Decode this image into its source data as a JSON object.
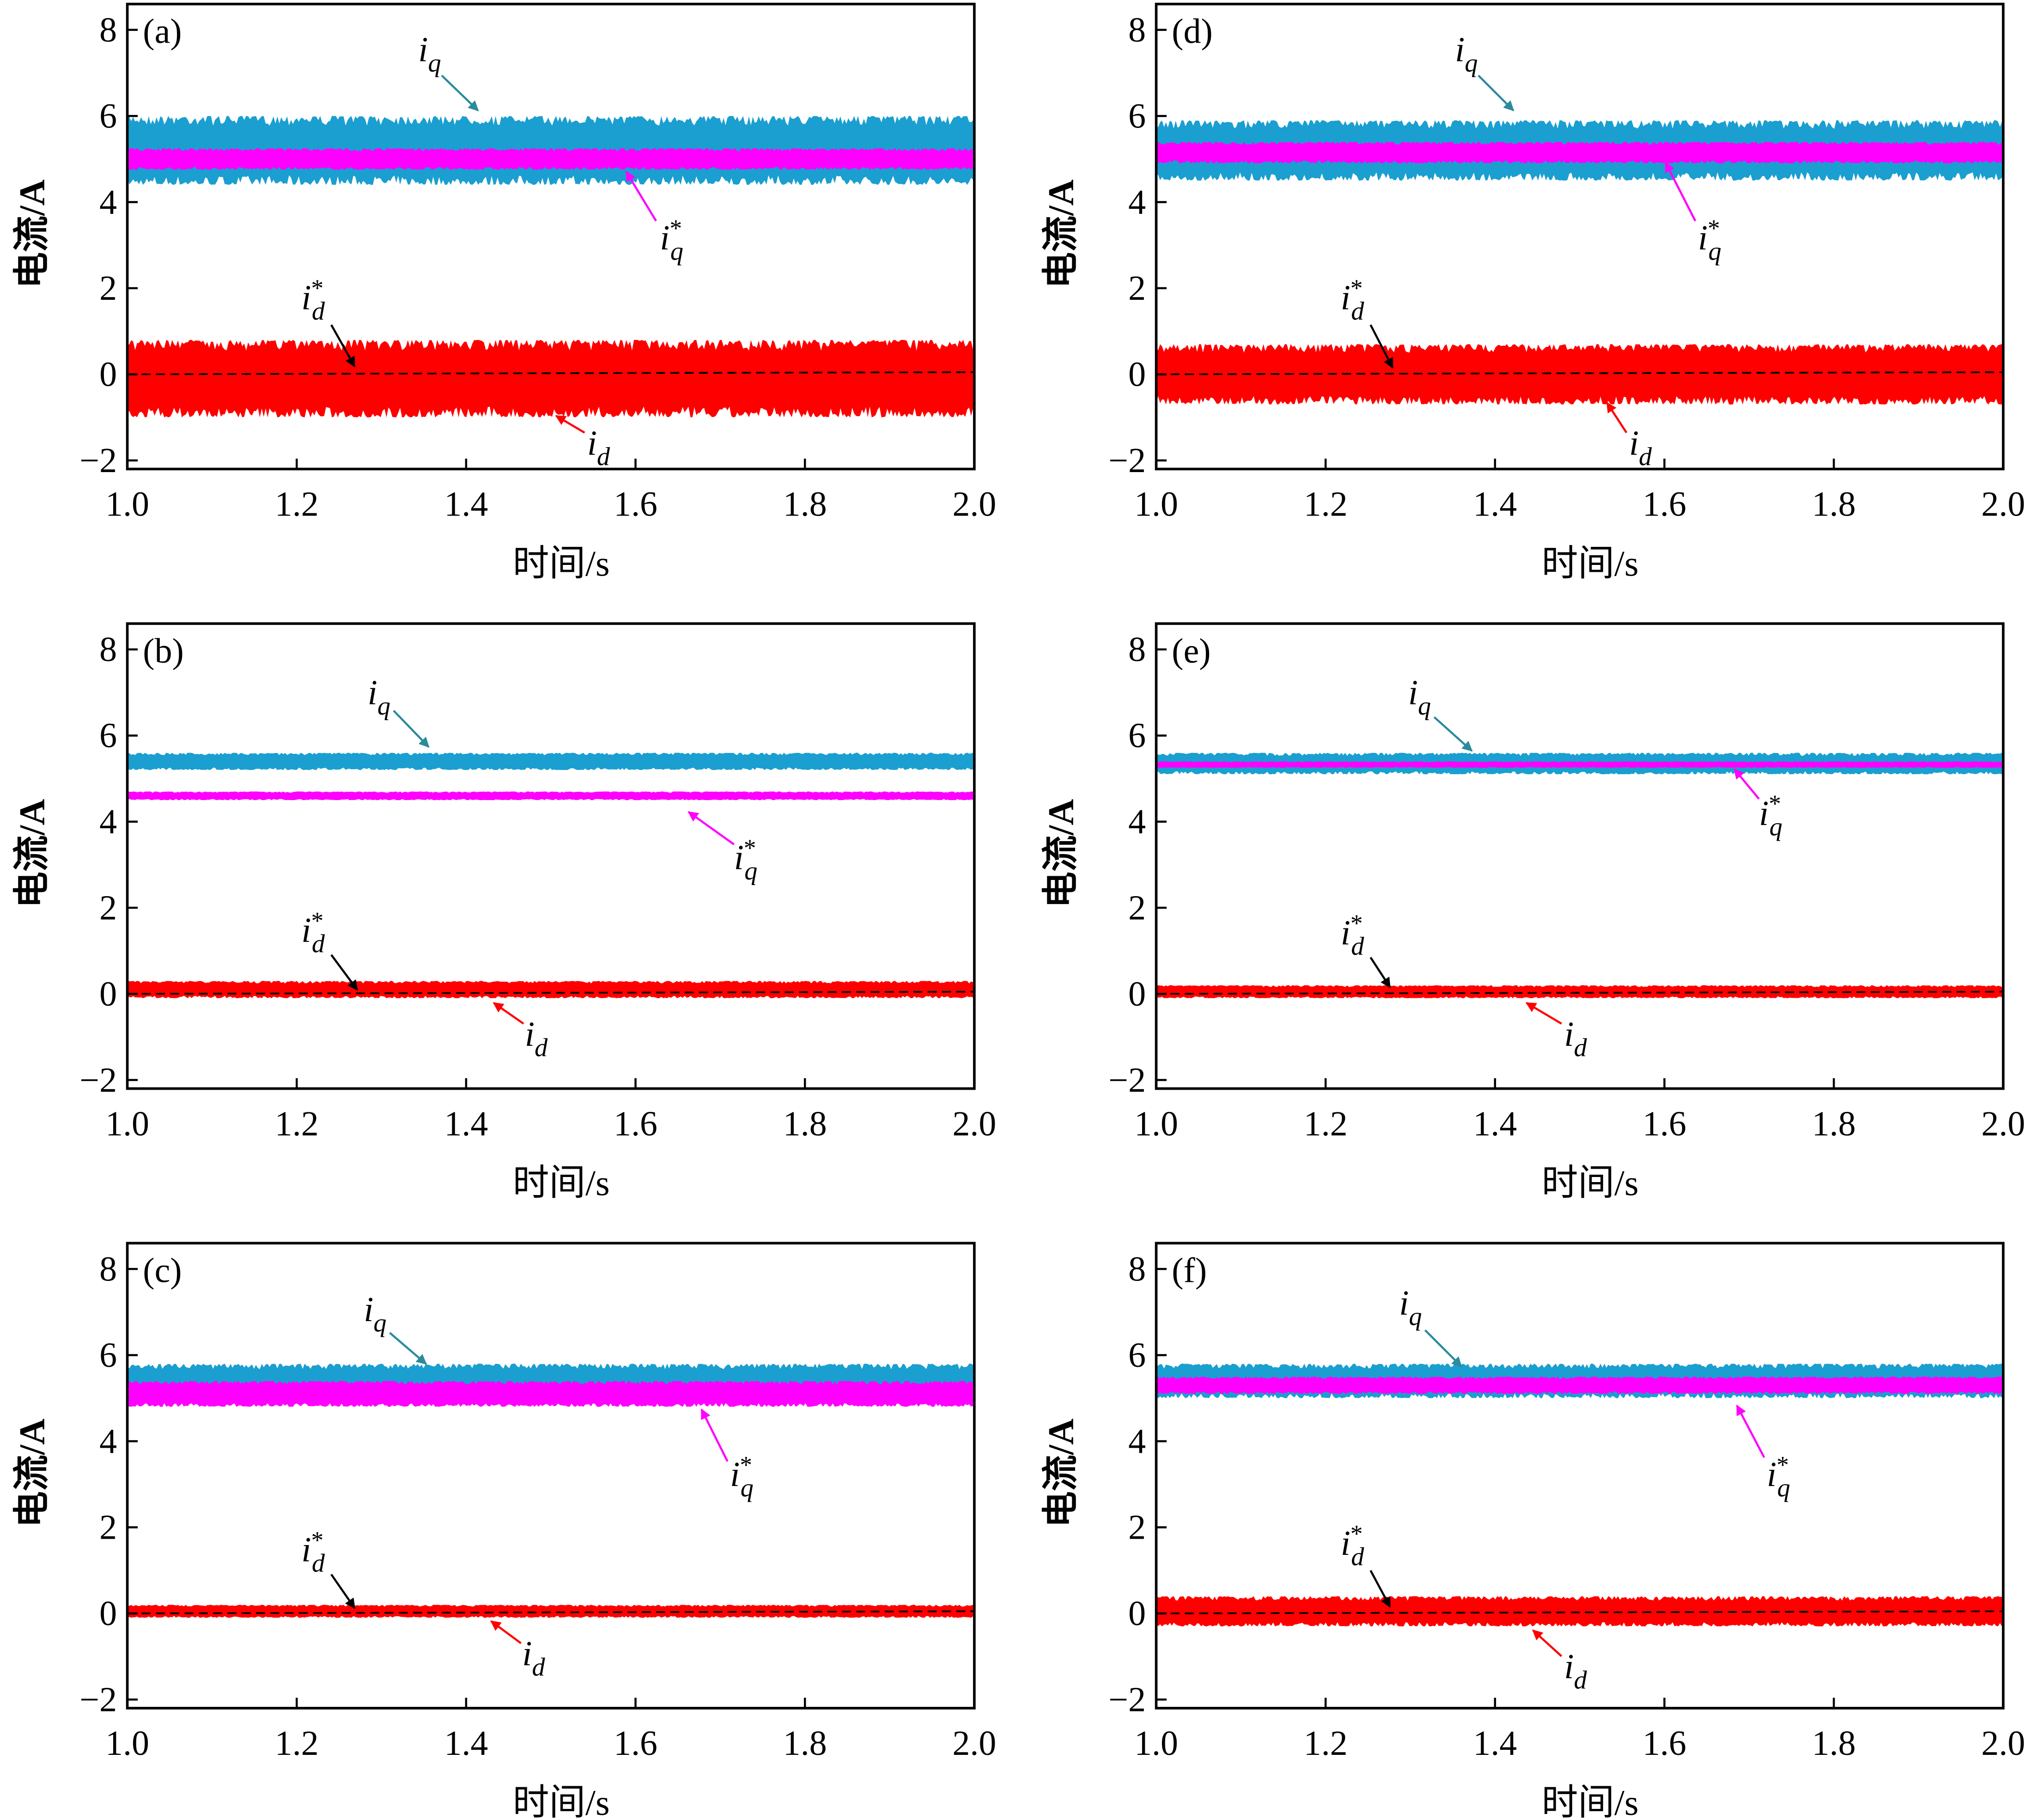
{
  "colors": {
    "iq": "#1a9fd0",
    "iq_ref": "#ff00ff",
    "id": "#ff0000",
    "id_ref": "#000000",
    "iq_arrow": "#2b8b9c"
  },
  "common": {
    "xlabel": "时间/s",
    "ylabel": "电流/A",
    "xlim": [
      1.0,
      2.0
    ],
    "ylim": [
      -2.2,
      8.6
    ],
    "xticks": [
      "1.0",
      "1.2",
      "1.4",
      "1.6",
      "1.8",
      "2.0"
    ],
    "yticks": [
      "−2",
      "0",
      "2",
      "4",
      "6",
      "8"
    ],
    "ann": {
      "iq": "i",
      "iq_sub": "q",
      "iq_ref": "i",
      "iq_ref_sub": "q",
      "id": "i",
      "id_sub": "d",
      "id_ref": "i",
      "id_ref_sub": "d",
      "star": "*"
    }
  },
  "chart_data": [
    {
      "type": "area",
      "panel": "(a)",
      "series": [
        {
          "name": "iq",
          "min": 4.4,
          "max": 6.0
        },
        {
          "name": "iq*",
          "min": 4.75,
          "max": 5.25
        },
        {
          "name": "id",
          "min": -1.0,
          "max": 0.8
        },
        {
          "name": "id*",
          "values": [
            0,
            0.05
          ]
        }
      ]
    },
    {
      "type": "area",
      "panel": "(b)",
      "series": [
        {
          "name": "iq",
          "min": 5.2,
          "max": 5.6
        },
        {
          "name": "iq*",
          "min": 4.5,
          "max": 4.7
        },
        {
          "name": "id",
          "min": -0.1,
          "max": 0.3
        },
        {
          "name": "id*",
          "values": [
            0,
            0.05
          ]
        }
      ]
    },
    {
      "type": "area",
      "panel": "(c)",
      "series": [
        {
          "name": "iq",
          "min": 4.9,
          "max": 5.8
        },
        {
          "name": "iq*",
          "min": 4.8,
          "max": 5.4
        },
        {
          "name": "id",
          "min": -0.1,
          "max": 0.2
        },
        {
          "name": "id*",
          "values": [
            0,
            0.05
          ]
        }
      ]
    },
    {
      "type": "area",
      "panel": "(d)",
      "series": [
        {
          "name": "iq",
          "min": 4.5,
          "max": 5.9
        },
        {
          "name": "iq*",
          "min": 4.9,
          "max": 5.4
        },
        {
          "name": "id",
          "min": -0.7,
          "max": 0.7
        },
        {
          "name": "id*",
          "values": [
            0,
            0.05
          ]
        }
      ]
    },
    {
      "type": "area",
      "panel": "(e)",
      "series": [
        {
          "name": "iq",
          "min": 5.1,
          "max": 5.6
        },
        {
          "name": "iq*",
          "min": 5.25,
          "max": 5.4
        },
        {
          "name": "id",
          "min": -0.1,
          "max": 0.2
        },
        {
          "name": "id*",
          "values": [
            0,
            0.05
          ]
        }
      ]
    },
    {
      "type": "area",
      "panel": "(f)",
      "series": [
        {
          "name": "iq",
          "min": 5.0,
          "max": 5.8
        },
        {
          "name": "iq*",
          "min": 5.1,
          "max": 5.5
        },
        {
          "name": "id",
          "min": -0.3,
          "max": 0.4
        },
        {
          "name": "id*",
          "values": [
            0,
            0.05
          ]
        }
      ]
    }
  ]
}
